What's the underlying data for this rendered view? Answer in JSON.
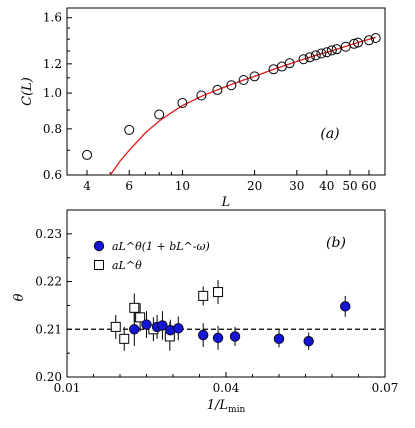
{
  "chart_data": [
    {
      "type": "scatter",
      "panel_label": "(a)",
      "xlabel": "L",
      "ylabel": "C(L)",
      "xscale": "log",
      "yscale": "log",
      "xlim": [
        3.3,
        70
      ],
      "ylim": [
        0.6,
        1.7
      ],
      "xticks": [
        4,
        6,
        10,
        20,
        30,
        40,
        50,
        60
      ],
      "yticks": [
        0.6,
        0.8,
        1.0,
        1.2,
        1.6
      ],
      "ytick_labels": [
        "0.6",
        "0.8",
        "1.0",
        "1.2",
        "1.6"
      ],
      "marker": "open circle",
      "x": [
        4,
        6,
        8,
        10,
        12,
        14,
        16,
        18,
        20,
        24,
        26,
        28,
        32,
        34,
        36,
        38,
        40,
        42,
        44,
        48,
        52,
        54,
        60,
        64
      ],
      "y": [
        0.68,
        0.795,
        0.875,
        0.94,
        0.985,
        1.02,
        1.05,
        1.085,
        1.11,
        1.16,
        1.18,
        1.205,
        1.235,
        1.25,
        1.265,
        1.28,
        1.29,
        1.305,
        1.315,
        1.335,
        1.36,
        1.37,
        1.39,
        1.41
      ],
      "fit_curve": {
        "color": "#e8191d",
        "x": [
          5.0,
          5.5,
          6,
          7,
          8,
          9,
          10,
          12,
          14,
          16,
          18,
          20,
          24,
          28,
          32,
          36,
          40,
          45,
          50,
          56,
          64
        ],
        "y": [
          0.6,
          0.655,
          0.7,
          0.78,
          0.84,
          0.885,
          0.925,
          0.98,
          1.02,
          1.055,
          1.085,
          1.11,
          1.16,
          1.2,
          1.235,
          1.265,
          1.29,
          1.32,
          1.35,
          1.38,
          1.415
        ]
      }
    },
    {
      "type": "scatter",
      "panel_label": "(b)",
      "xlabel": "1/L_min",
      "ylabel": "θ",
      "xlim": [
        0.01,
        0.07
      ],
      "ylim": [
        0.2,
        0.235
      ],
      "xticks": [
        0.01,
        0.04,
        0.07
      ],
      "xtick_labels": [
        "0.01",
        "0.04",
        "0.07"
      ],
      "yticks": [
        0.2,
        0.21,
        0.22,
        0.23
      ],
      "ytick_labels": [
        "0.20",
        "0.21",
        "0.22",
        "0.23"
      ],
      "reference_line": 0.21,
      "legend": "top-left",
      "series": [
        {
          "name": "aL^θ(1 + bL^-ω)",
          "marker": "filled circle",
          "color": "#1515d6",
          "x": [
            0.0227,
            0.025,
            0.027,
            0.028,
            0.0295,
            0.031,
            0.0357,
            0.0385,
            0.0417,
            0.05,
            0.0556,
            0.0625
          ],
          "y": [
            0.21,
            0.211,
            0.2105,
            0.2108,
            0.2098,
            0.2102,
            0.2088,
            0.2082,
            0.2085,
            0.208,
            0.2075,
            0.2148
          ],
          "err": [
            0.0035,
            0.0028,
            0.0025,
            0.003,
            0.0022,
            0.0025,
            0.0025,
            0.0025,
            0.002,
            0.0018,
            0.0018,
            0.0022
          ]
        },
        {
          "name": "aL^θ",
          "marker": "open square",
          "color": "#000000",
          "x": [
            0.0192,
            0.0208,
            0.0227,
            0.0238,
            0.0263,
            0.0294,
            0.0357,
            0.0385
          ],
          "y": [
            0.2105,
            0.208,
            0.2145,
            0.2125,
            0.21,
            0.2085,
            0.217,
            0.2178
          ],
          "err": [
            0.0025,
            0.0025,
            0.003,
            0.003,
            0.0025,
            0.003,
            0.002,
            0.0025
          ]
        }
      ]
    }
  ]
}
